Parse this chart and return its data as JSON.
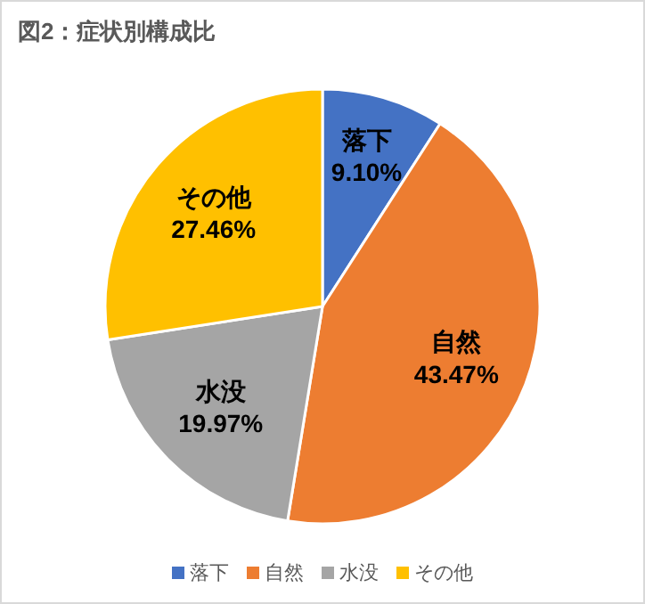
{
  "chart_data": {
    "type": "pie",
    "title": "図2：症状別構成比",
    "categories": [
      "落下",
      "自然",
      "水没",
      "その他"
    ],
    "values": [
      9.1,
      43.47,
      19.97,
      27.46
    ],
    "colors": [
      "#4472c4",
      "#ed7d31",
      "#a5a5a5",
      "#ffc000"
    ],
    "value_labels": [
      "9.10%",
      "43.47%",
      "19.97%",
      "27.46%"
    ],
    "legend": "bottom"
  }
}
